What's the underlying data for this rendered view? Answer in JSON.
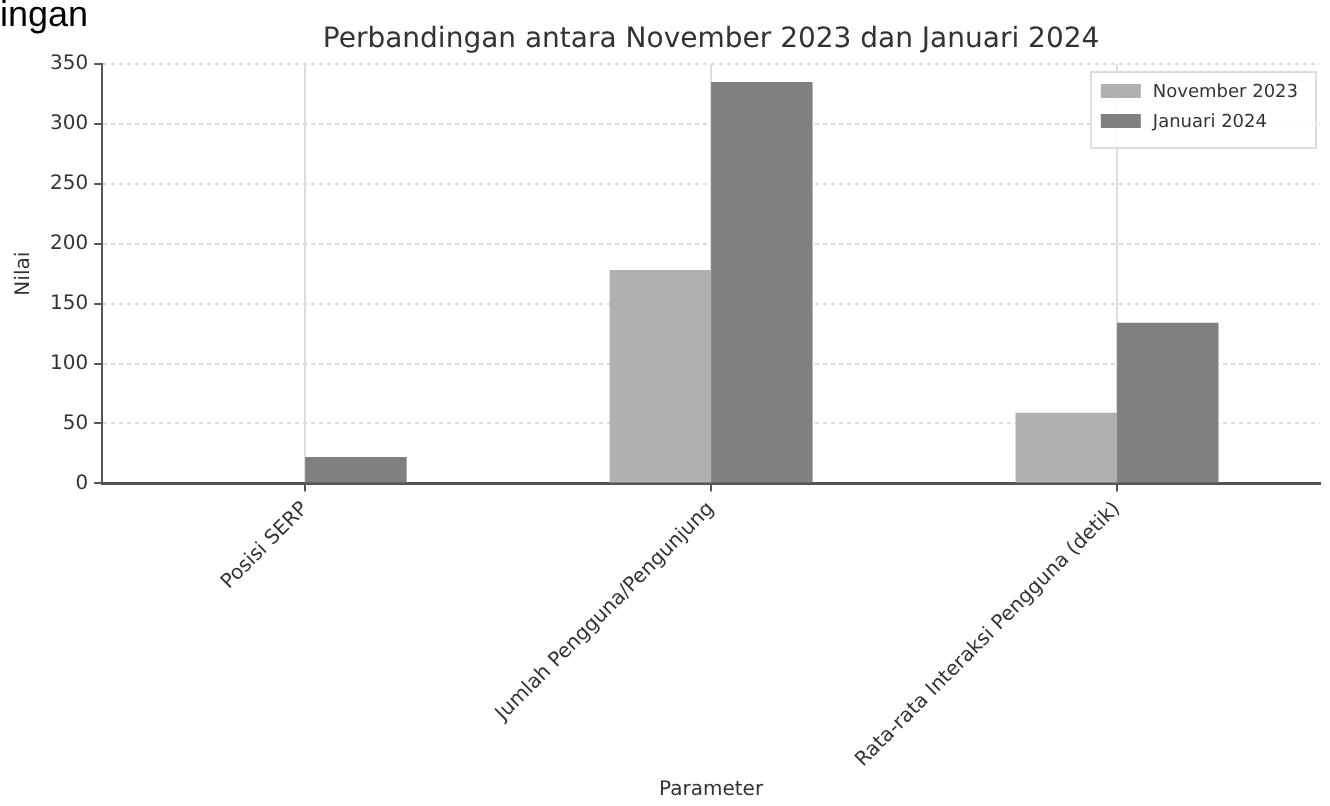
{
  "chart_data": {
    "type": "bar",
    "title": "Perbandingan antara November 2023 dan Januari 2024",
    "xlabel": "Parameter",
    "ylabel": "Nilai",
    "annotations": [
      "ingan"
    ],
    "categories": [
      "Posisi SERP",
      "Jumlah Pengguna/Pengunjung",
      "Rata-rata Interaksi Pengguna (detik)"
    ],
    "series": [
      {
        "name": "November 2023",
        "color": "#b0b0b0",
        "values": [
          0,
          178,
          59
        ]
      },
      {
        "name": "Januari 2024",
        "color": "#808080",
        "values": [
          22,
          335,
          134
        ]
      }
    ],
    "ylim": [
      0,
      350
    ],
    "yticks": [
      0,
      50,
      100,
      150,
      200,
      250,
      300,
      350
    ],
    "grid": true,
    "legend": "top right"
  }
}
